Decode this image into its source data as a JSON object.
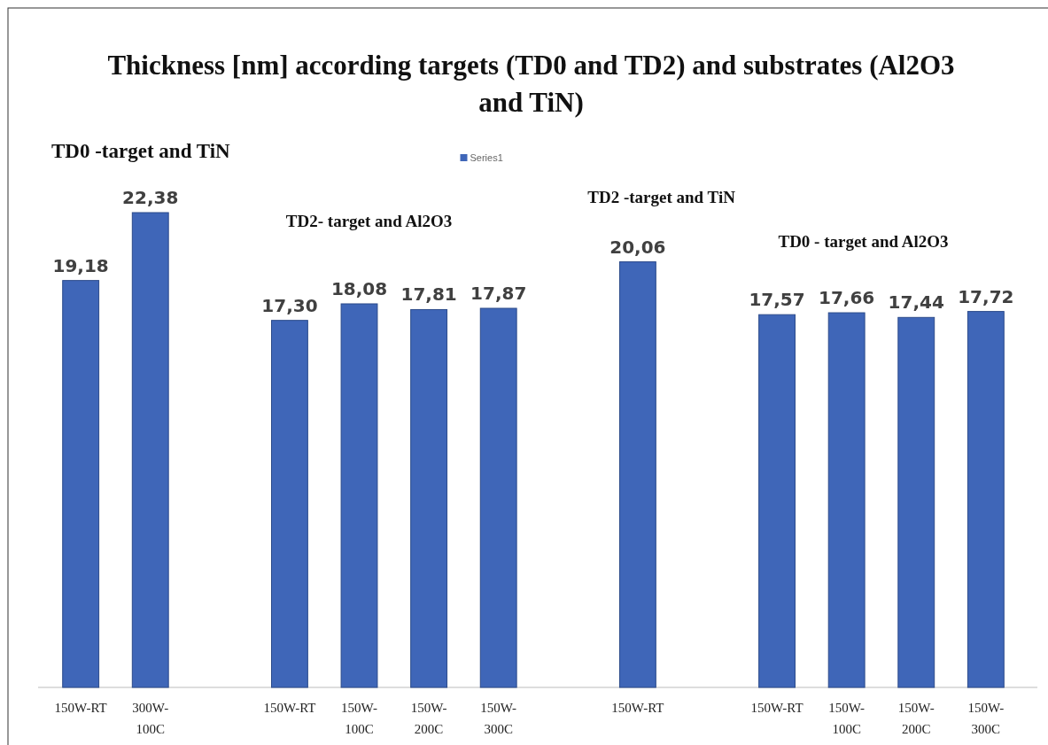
{
  "chart_data": {
    "type": "bar",
    "title": "Thickness [nm] according targets (TD0 and TD2) and substrates (Al2O3 and TiN)",
    "categories": [
      "150W-RT",
      "300W-100C",
      null,
      "150W-RT",
      "150W-100C",
      "150W-200C",
      "150W-300C",
      null,
      "150W-RT",
      null,
      "150W-RT",
      "150W-100C",
      "150W-200C",
      "150W-300C"
    ],
    "series": [
      {
        "name": "Series1",
        "color": "#3f66b8",
        "values": [
          19.18,
          22.38,
          null,
          17.3,
          18.08,
          17.81,
          17.87,
          null,
          20.06,
          null,
          17.57,
          17.66,
          17.44,
          17.72
        ],
        "value_labels": [
          "19,18",
          "22,38",
          null,
          "17,30",
          "18,08",
          "17,81",
          "17,87",
          null,
          "20,06",
          null,
          "17,57",
          "17,66",
          "17,44",
          "17,72"
        ]
      }
    ],
    "annotations": [
      "TD0 -target and  TiN",
      "TD2- target  and Al2O3",
      "TD2 -target  and TiN",
      "TD0 - target and Al2O3"
    ],
    "legend": "top"
  }
}
